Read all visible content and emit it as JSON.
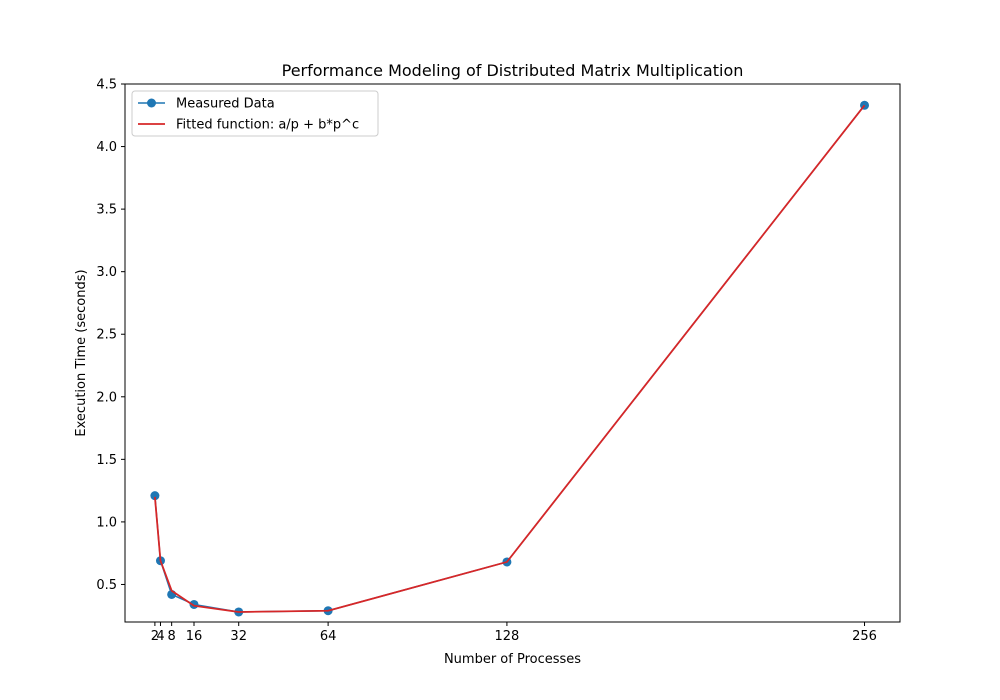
{
  "chart_data": {
    "type": "line",
    "title": "Performance Modeling of Distributed Matrix Multiplication",
    "xlabel": "Number of Processes",
    "ylabel": "Execution Time (seconds)",
    "xlim": [
      -8.7,
      268.7
    ],
    "ylim": [
      0.2,
      4.5
    ],
    "xticks": [
      2,
      4,
      8,
      16,
      32,
      64,
      128,
      256
    ],
    "xtick_labels": [
      "2",
      "4",
      "8",
      "16",
      "32",
      "64",
      "128",
      "256"
    ],
    "yticks": [
      0.5,
      1.0,
      1.5,
      2.0,
      2.5,
      3.0,
      3.5,
      4.0,
      4.5
    ],
    "ytick_labels": [
      "0.5",
      "1.0",
      "1.5",
      "2.0",
      "2.5",
      "3.0",
      "3.5",
      "4.0",
      "4.5"
    ],
    "grid": false,
    "legend_position": "top-left",
    "series": [
      {
        "name": "Measured Data",
        "style": "line-with-markers",
        "color": "#1f77b4",
        "x": [
          2,
          4,
          8,
          16,
          32,
          64,
          128,
          256
        ],
        "y": [
          1.21,
          0.69,
          0.42,
          0.34,
          0.28,
          0.29,
          0.68,
          4.33
        ]
      },
      {
        "name": "Fitted function: a/p + b*p^c",
        "style": "line",
        "color": "#d62728",
        "x": [
          2,
          4,
          8,
          16,
          32,
          64,
          128,
          256
        ],
        "y": [
          1.2,
          0.69,
          0.45,
          0.33,
          0.28,
          0.29,
          0.68,
          4.33
        ]
      }
    ]
  }
}
